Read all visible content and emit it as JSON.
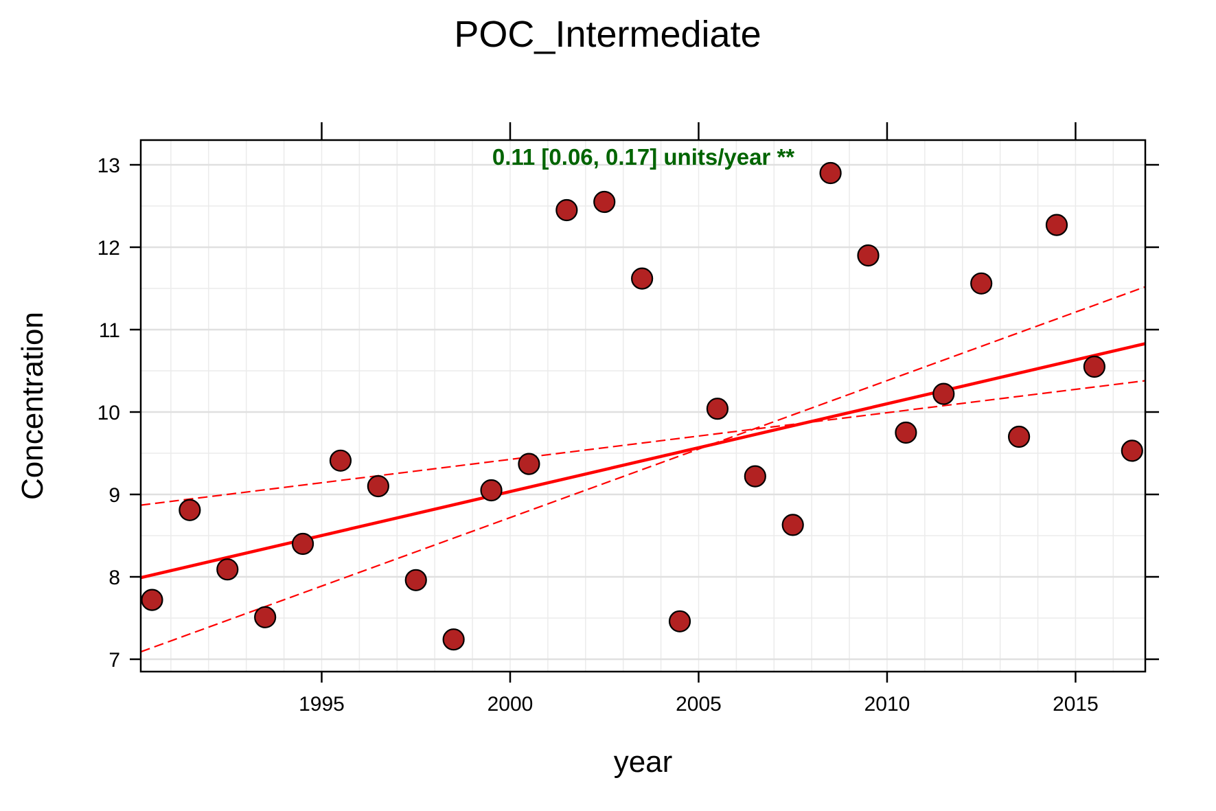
{
  "chart_data": {
    "type": "scatter",
    "title": "POC_Intermediate",
    "xlabel": "year",
    "ylabel": "Concentration",
    "xlim": [
      1990.2,
      2016.85
    ],
    "ylim": [
      6.85,
      13.3
    ],
    "xticks": [
      1995,
      2000,
      2005,
      2010,
      2015
    ],
    "yticks": [
      7,
      8,
      9,
      10,
      11,
      12,
      13
    ],
    "grid": true,
    "annotation": "0.11 [0.06, 0.17] units/year **",
    "annotation_color": "#006400",
    "point_color": "#b22222",
    "line_color": "#ff0000",
    "points": [
      {
        "x": 1990.5,
        "y": 7.72
      },
      {
        "x": 1991.5,
        "y": 8.81
      },
      {
        "x": 1992.5,
        "y": 8.09
      },
      {
        "x": 1993.5,
        "y": 7.51
      },
      {
        "x": 1994.5,
        "y": 8.4
      },
      {
        "x": 1995.5,
        "y": 9.41
      },
      {
        "x": 1996.5,
        "y": 9.1
      },
      {
        "x": 1997.5,
        "y": 7.96
      },
      {
        "x": 1998.5,
        "y": 7.24
      },
      {
        "x": 1999.5,
        "y": 9.05
      },
      {
        "x": 2000.5,
        "y": 9.37
      },
      {
        "x": 2001.5,
        "y": 12.45
      },
      {
        "x": 2002.5,
        "y": 12.55
      },
      {
        "x": 2003.5,
        "y": 11.62
      },
      {
        "x": 2004.5,
        "y": 7.46
      },
      {
        "x": 2005.5,
        "y": 10.04
      },
      {
        "x": 2006.5,
        "y": 9.22
      },
      {
        "x": 2007.5,
        "y": 8.63
      },
      {
        "x": 2008.5,
        "y": 12.9
      },
      {
        "x": 2009.5,
        "y": 11.9
      },
      {
        "x": 2010.5,
        "y": 9.75
      },
      {
        "x": 2011.5,
        "y": 10.22
      },
      {
        "x": 2012.5,
        "y": 11.56
      },
      {
        "x": 2013.5,
        "y": 9.7
      },
      {
        "x": 2014.5,
        "y": 12.27
      },
      {
        "x": 2015.5,
        "y": 10.55
      },
      {
        "x": 2016.5,
        "y": 9.53
      }
    ],
    "trend": {
      "x": [
        1990.2,
        2016.85
      ],
      "y": [
        7.99,
        10.83
      ]
    },
    "trend_upper_ci": {
      "x": [
        1990.2,
        2016.85
      ],
      "y": [
        8.87,
        10.38
      ]
    },
    "trend_lower_ci": {
      "x": [
        1990.2,
        2016.85
      ],
      "y": [
        7.09,
        11.52
      ]
    }
  }
}
